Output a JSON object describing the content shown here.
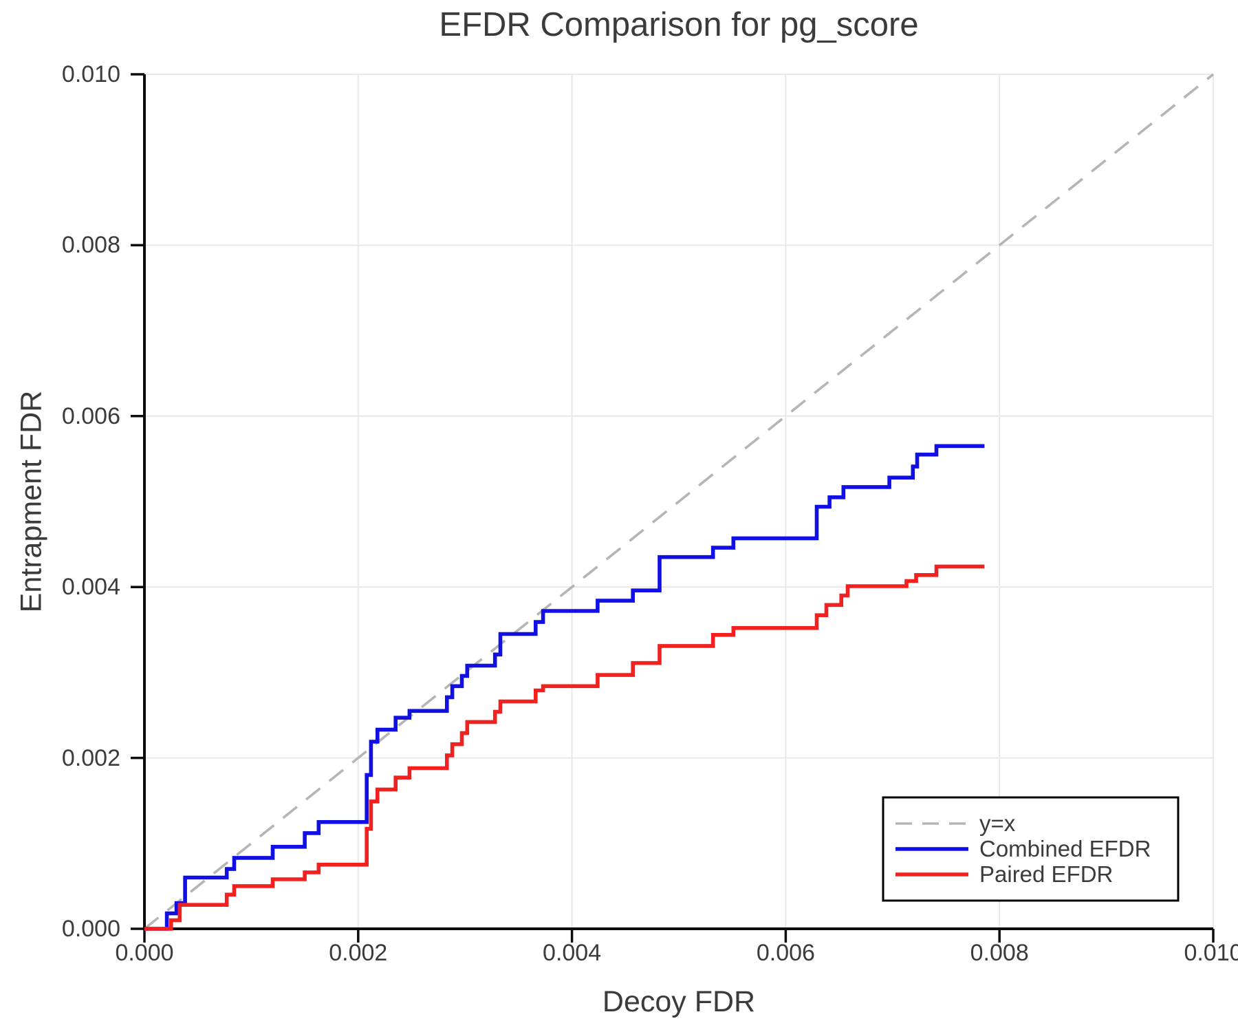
{
  "title": "EFDR Comparison for pg_score",
  "axes": {
    "x_label": "Decoy FDR",
    "y_label": "Entrapment FDR",
    "x_tick_labels": [
      "0.000",
      "0.002",
      "0.004",
      "0.006",
      "0.008",
      "0.010"
    ],
    "y_tick_labels": [
      "0.000",
      "0.002",
      "0.004",
      "0.006",
      "0.008",
      "0.010"
    ]
  },
  "legend": {
    "position": "lower right",
    "entries": [
      {
        "label": "y=x",
        "color": "#b5b5b5",
        "dashed": true
      },
      {
        "label": "Combined EFDR",
        "color": "#1010e6",
        "dashed": false
      },
      {
        "label": "Paired EFDR",
        "color": "#f32020",
        "dashed": false
      }
    ]
  },
  "colors": {
    "identity_line": "#b5b5b5",
    "combined_line": "#1010e6",
    "paired_line": "#f32020",
    "grid": "#e7e7e7",
    "spine": "#0d0d0d",
    "text": "#3b3b3b",
    "legend_border": "#000000",
    "background": "#ffffff"
  },
  "chart_data": {
    "type": "line",
    "title": "EFDR Comparison for pg_score",
    "xlabel": "Decoy FDR",
    "ylabel": "Entrapment FDR",
    "xlim": [
      0.0,
      0.01
    ],
    "ylim": [
      0.0,
      0.01
    ],
    "x_ticks": [
      0.0,
      0.002,
      0.004,
      0.006,
      0.008,
      0.01
    ],
    "y_ticks": [
      0.0,
      0.002,
      0.004,
      0.006,
      0.008,
      0.01
    ],
    "grid": true,
    "legend_position": "lower right",
    "series": [
      {
        "name": "y=x",
        "style": "dashed",
        "color": "#b5b5b5",
        "points": [
          [
            0.0,
            0.0
          ],
          [
            0.01,
            0.01
          ]
        ]
      },
      {
        "name": "Combined EFDR",
        "style": "step-post",
        "color": "#1010e6",
        "start": [
          0.0,
          0.0
        ],
        "x_end": 0.00786,
        "steps": [
          [
            0.00021,
            0.00018
          ],
          [
            0.0003,
            0.0003
          ],
          [
            0.00038,
            0.0006
          ],
          [
            0.00077,
            0.0007
          ],
          [
            0.00084,
            0.00083
          ],
          [
            0.0012,
            0.00096
          ],
          [
            0.0015,
            0.00112
          ],
          [
            0.00163,
            0.00125
          ],
          [
            0.00208,
            0.0018
          ],
          [
            0.00212,
            0.00219
          ],
          [
            0.00218,
            0.00233
          ],
          [
            0.00235,
            0.00247
          ],
          [
            0.00248,
            0.00255
          ],
          [
            0.00283,
            0.00271
          ],
          [
            0.00288,
            0.00284
          ],
          [
            0.00297,
            0.00296
          ],
          [
            0.00302,
            0.00308
          ],
          [
            0.00328,
            0.00321
          ],
          [
            0.00333,
            0.00345
          ],
          [
            0.00366,
            0.00359
          ],
          [
            0.00373,
            0.00372
          ],
          [
            0.00424,
            0.00384
          ],
          [
            0.00457,
            0.00396
          ],
          [
            0.00482,
            0.00435
          ],
          [
            0.00532,
            0.00446
          ],
          [
            0.00551,
            0.00457
          ],
          [
            0.00629,
            0.00494
          ],
          [
            0.00641,
            0.00505
          ],
          [
            0.00654,
            0.00517
          ],
          [
            0.00697,
            0.00528
          ],
          [
            0.00719,
            0.00541
          ],
          [
            0.00723,
            0.00555
          ],
          [
            0.00741,
            0.00565
          ]
        ]
      },
      {
        "name": "Paired EFDR",
        "style": "step-post",
        "color": "#f32020",
        "start": [
          0.0,
          0.0
        ],
        "x_end": 0.00786,
        "steps": [
          [
            0.00025,
            0.0001
          ],
          [
            0.00033,
            0.00028
          ],
          [
            0.00077,
            0.0004
          ],
          [
            0.00084,
            0.0005
          ],
          [
            0.0012,
            0.00058
          ],
          [
            0.0015,
            0.00066
          ],
          [
            0.00163,
            0.00075
          ],
          [
            0.00208,
            0.00117
          ],
          [
            0.00212,
            0.00149
          ],
          [
            0.00218,
            0.00163
          ],
          [
            0.00235,
            0.00177
          ],
          [
            0.00248,
            0.00188
          ],
          [
            0.00283,
            0.00203
          ],
          [
            0.00288,
            0.00216
          ],
          [
            0.00297,
            0.00229
          ],
          [
            0.00302,
            0.00242
          ],
          [
            0.00328,
            0.00254
          ],
          [
            0.00333,
            0.00266
          ],
          [
            0.00366,
            0.00279
          ],
          [
            0.00373,
            0.00284
          ],
          [
            0.00424,
            0.00297
          ],
          [
            0.00457,
            0.00311
          ],
          [
            0.00482,
            0.00331
          ],
          [
            0.00532,
            0.00344
          ],
          [
            0.00551,
            0.00352
          ],
          [
            0.00629,
            0.00367
          ],
          [
            0.00638,
            0.00379
          ],
          [
            0.00652,
            0.0039
          ],
          [
            0.00658,
            0.00401
          ],
          [
            0.00713,
            0.00407
          ],
          [
            0.00722,
            0.00414
          ],
          [
            0.00741,
            0.00424
          ]
        ]
      }
    ]
  }
}
